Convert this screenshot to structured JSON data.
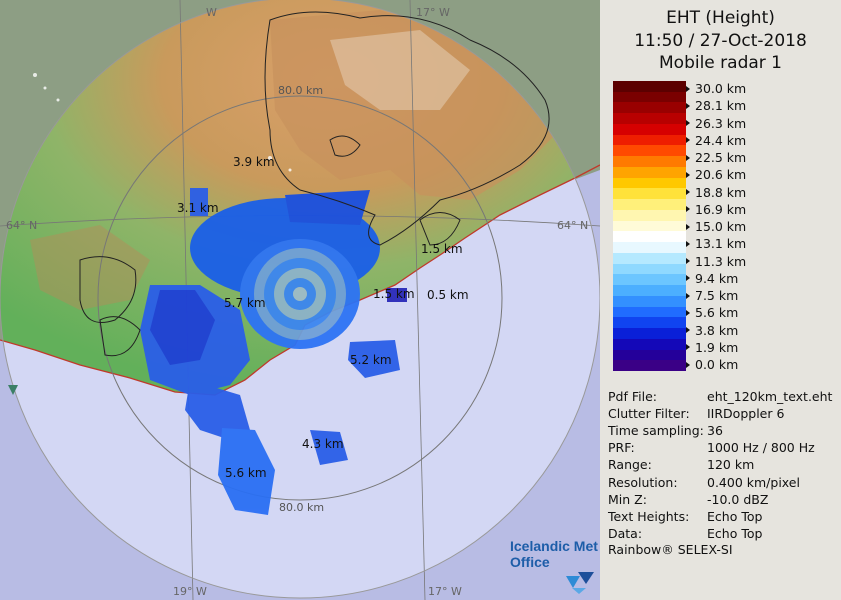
{
  "header": {
    "line1": "EHT (Height)",
    "line2": "11:50 / 27-Oct-2018",
    "line3": "Mobile radar 1"
  },
  "legend": {
    "labels": [
      "30.0 km",
      "28.1 km",
      "26.3 km",
      "24.4 km",
      "22.5 km",
      "20.6 km",
      "18.8 km",
      "16.9 km",
      "15.0 km",
      "13.1 km",
      "11.3 km",
      "9.4 km",
      "7.5 km",
      "5.6 km",
      "3.8 km",
      "1.9 km",
      "0.0 km"
    ],
    "colors": [
      "#5c0000",
      "#7a0000",
      "#990000",
      "#b80000",
      "#d60000",
      "#ee1e00",
      "#ff4a00",
      "#ff7a00",
      "#ffa400",
      "#ffc800",
      "#ffe23a",
      "#fff07a",
      "#fff6b0",
      "#fffbd8",
      "#ffffff",
      "#e8f8ff",
      "#b5e9ff",
      "#8fd9ff",
      "#6cc6ff",
      "#4cafff",
      "#3390ff",
      "#206cff",
      "#1044f0",
      "#0a20d8",
      "#1408b8",
      "#24009a",
      "#3a0086"
    ]
  },
  "info": [
    {
      "key": "Pdf File:",
      "value": "eht_120km_text.eht"
    },
    {
      "key": "Clutter Filter:",
      "value": "IIRDoppler 6"
    },
    {
      "key": "Time sampling:",
      "value": "36"
    },
    {
      "key": "PRF:",
      "value": "1000 Hz / 800 Hz"
    },
    {
      "key": "Range:",
      "value": "120 km"
    },
    {
      "key": "Resolution:",
      "value": "0.400 km/pixel"
    },
    {
      "key": "Min Z:",
      "value": "-10.0 dBZ"
    },
    {
      "key": "Text Heights:",
      "value": "Echo Top"
    },
    {
      "key": "Data:",
      "value": "Echo Top"
    }
  ],
  "footer": "Rainbow® SELEX-SI",
  "map": {
    "grid_labels": {
      "lon_w19_bottom": "19° W",
      "lon_w17_bottom": "17° W",
      "lon_w17_top": "17° W",
      "lon_w_top": "W",
      "lat_left": "64° N",
      "lat_right": "64° N"
    },
    "range_rings": {
      "top": "80.0 km",
      "bottom": "80.0 km"
    },
    "echo_labels": [
      "3.9 km",
      "3.1 km",
      "5.7 km",
      "1.5 km",
      "1.5 km",
      "0.5 km",
      "5.2 km",
      "4.3 km",
      "5.6 km"
    ]
  },
  "logo": {
    "line1": "Icelandic Met",
    "line2": "Office"
  }
}
